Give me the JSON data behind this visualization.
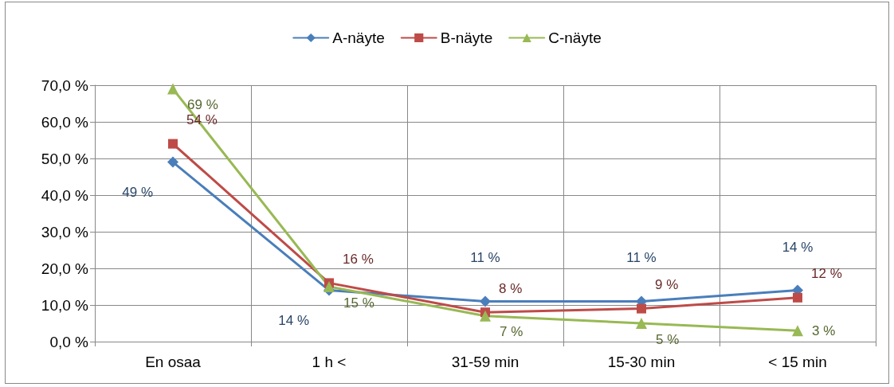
{
  "chart_data": {
    "type": "line",
    "categories": [
      "En osaa",
      "1 h <",
      "31-59 min",
      "15-30 min",
      "< 15 min"
    ],
    "series": [
      {
        "name": "A-näyte",
        "color": "#4a7ebb",
        "marker": "diamond",
        "values": [
          49,
          14,
          11,
          11,
          14
        ],
        "value_labels": [
          "49 %",
          "14 %",
          "11 %",
          "11 %",
          "14 %"
        ]
      },
      {
        "name": "B-näyte",
        "color": "#be4b48",
        "marker": "square",
        "values": [
          54,
          16,
          8,
          9,
          12
        ],
        "value_labels": [
          "54 %",
          "16 %",
          "8 %",
          "9 %",
          "12 %"
        ]
      },
      {
        "name": "C-näyte",
        "color": "#98b954",
        "marker": "triangle",
        "values": [
          69,
          15,
          7,
          5,
          3
        ],
        "value_labels": [
          "69 %",
          "15 %",
          "7 %",
          "5 %",
          "3 %"
        ]
      }
    ],
    "ylim": [
      0,
      70
    ],
    "yticks": [
      {
        "value": 0,
        "label": "0,0 %"
      },
      {
        "value": 10,
        "label": "10,0 %"
      },
      {
        "value": 20,
        "label": "20,0 %"
      },
      {
        "value": 30,
        "label": "30,0 %"
      },
      {
        "value": 40,
        "label": "40,0 %"
      },
      {
        "value": 50,
        "label": "50,0 %"
      },
      {
        "value": 60,
        "label": "60,0 %"
      },
      {
        "value": 70,
        "label": "70,0 %"
      }
    ],
    "grid": true,
    "legend": "top",
    "line_style": "solid"
  }
}
